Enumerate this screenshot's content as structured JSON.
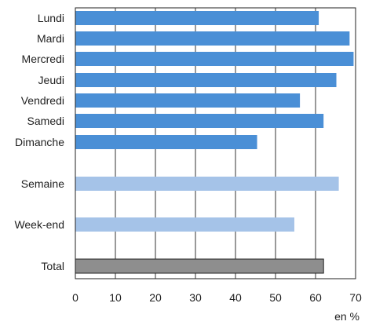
{
  "chart_data": {
    "type": "bar",
    "orientation": "horizontal",
    "title": "",
    "xlabel": "",
    "ylabel": "",
    "unit_label": "en %",
    "xlim": [
      0,
      70
    ],
    "xticks": [
      0,
      10,
      20,
      30,
      40,
      50,
      60,
      70
    ],
    "grid": true,
    "colors": {
      "day": "#4a8fd6",
      "group": "#a5c3e8",
      "total": "#8e8e8e"
    },
    "categories": [
      "Lundi",
      "Mardi",
      "Mercredi",
      "Jeudi",
      "Vendredi",
      "Samedi",
      "Dimanche",
      "Semaine",
      "Week-end",
      "Total"
    ],
    "bars": [
      {
        "label": "Lundi",
        "value": 60.8,
        "style": "day"
      },
      {
        "label": "Mardi",
        "value": 68.5,
        "style": "day"
      },
      {
        "label": "Mercredi",
        "value": 69.5,
        "style": "day"
      },
      {
        "label": "Jeudi",
        "value": 65.2,
        "style": "day"
      },
      {
        "label": "Vendredi",
        "value": 56.1,
        "style": "day"
      },
      {
        "label": "Samedi",
        "value": 62.0,
        "style": "day"
      },
      {
        "label": "Dimanche",
        "value": 45.4,
        "style": "day"
      },
      {
        "label": "Semaine",
        "value": 65.8,
        "style": "group"
      },
      {
        "label": "Week-end",
        "value": 54.7,
        "style": "group"
      },
      {
        "label": "Total",
        "value": 62.0,
        "style": "total"
      }
    ]
  }
}
